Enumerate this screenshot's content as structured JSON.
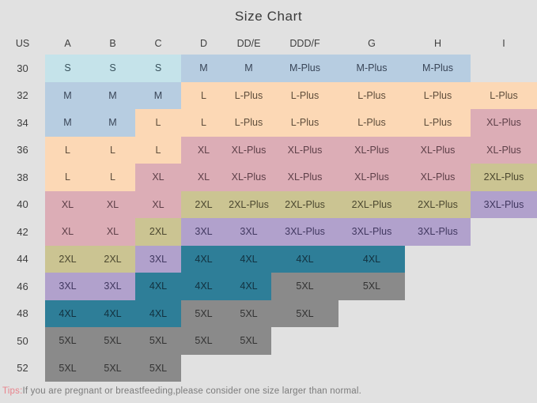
{
  "colors": {
    "background": "#e1e1e1",
    "title_text": "#3a3a3a",
    "header_text": "#3e3e3e",
    "tips_text": "#7b7b7b",
    "tips_label": "#e8838c"
  },
  "tips": {
    "label": "Tips:",
    "text": "If you are pregnant or breastfeeding,please consider one size larger than normal."
  },
  "chart_data": {
    "type": "table",
    "title": "Size Chart",
    "columns": [
      "US",
      "A",
      "B",
      "C",
      "D",
      "DD/E",
      "DDD/F",
      "G",
      "H",
      "I"
    ],
    "palette": {
      "cyan": {
        "bg": "#c5e3ea",
        "fg": "#37505a"
      },
      "blue": {
        "bg": "#b7cde1",
        "fg": "#394557"
      },
      "peach": {
        "bg": "#fcd8b5",
        "fg": "#5e4d3b"
      },
      "pink": {
        "bg": "#dcadb6",
        "fg": "#5e4049"
      },
      "olive": {
        "bg": "#cbc492",
        "fg": "#4c4830"
      },
      "purple": {
        "bg": "#b1a1cc",
        "fg": "#413860"
      },
      "teal": {
        "bg": "#2e7e98",
        "fg": "#12313f"
      },
      "gray": {
        "bg": "#8a8a8a",
        "fg": "#333333"
      }
    },
    "rows": [
      {
        "us": "30",
        "cells": [
          {
            "text": "S",
            "color": "cyan"
          },
          {
            "text": "S",
            "color": "cyan"
          },
          {
            "text": "S",
            "color": "cyan"
          },
          {
            "text": "M",
            "color": "blue"
          },
          {
            "text": "M",
            "color": "blue"
          },
          {
            "text": "M-Plus",
            "color": "blue"
          },
          {
            "text": "M-Plus",
            "color": "blue"
          },
          {
            "text": "M-Plus",
            "color": "blue"
          },
          null
        ]
      },
      {
        "us": "32",
        "cells": [
          {
            "text": "M",
            "color": "blue"
          },
          {
            "text": "M",
            "color": "blue"
          },
          {
            "text": "M",
            "color": "blue"
          },
          {
            "text": "L",
            "color": "peach"
          },
          {
            "text": "L-Plus",
            "color": "peach"
          },
          {
            "text": "L-Plus",
            "color": "peach"
          },
          {
            "text": "L-Plus",
            "color": "peach"
          },
          {
            "text": "L-Plus",
            "color": "peach"
          },
          {
            "text": "L-Plus",
            "color": "peach"
          }
        ]
      },
      {
        "us": "34",
        "cells": [
          {
            "text": "M",
            "color": "blue"
          },
          {
            "text": "M",
            "color": "blue"
          },
          {
            "text": "L",
            "color": "peach"
          },
          {
            "text": "L",
            "color": "peach"
          },
          {
            "text": "L-Plus",
            "color": "peach"
          },
          {
            "text": "L-Plus",
            "color": "peach"
          },
          {
            "text": "L-Plus",
            "color": "peach"
          },
          {
            "text": "L-Plus",
            "color": "peach"
          },
          {
            "text": "XL-Plus",
            "color": "pink"
          }
        ]
      },
      {
        "us": "36",
        "cells": [
          {
            "text": "L",
            "color": "peach"
          },
          {
            "text": "L",
            "color": "peach"
          },
          {
            "text": "L",
            "color": "peach"
          },
          {
            "text": "XL",
            "color": "pink"
          },
          {
            "text": "XL-Plus",
            "color": "pink"
          },
          {
            "text": "XL-Plus",
            "color": "pink"
          },
          {
            "text": "XL-Plus",
            "color": "pink"
          },
          {
            "text": "XL-Plus",
            "color": "pink"
          },
          {
            "text": "XL-Plus",
            "color": "pink"
          }
        ]
      },
      {
        "us": "38",
        "cells": [
          {
            "text": "L",
            "color": "peach"
          },
          {
            "text": "L",
            "color": "peach"
          },
          {
            "text": "XL",
            "color": "pink"
          },
          {
            "text": "XL",
            "color": "pink"
          },
          {
            "text": "XL-Plus",
            "color": "pink"
          },
          {
            "text": "XL-Plus",
            "color": "pink"
          },
          {
            "text": "XL-Plus",
            "color": "pink"
          },
          {
            "text": "XL-Plus",
            "color": "pink"
          },
          {
            "text": "2XL-Plus",
            "color": "olive"
          }
        ]
      },
      {
        "us": "40",
        "cells": [
          {
            "text": "XL",
            "color": "pink"
          },
          {
            "text": "XL",
            "color": "pink"
          },
          {
            "text": "XL",
            "color": "pink"
          },
          {
            "text": "2XL",
            "color": "olive"
          },
          {
            "text": "2XL-Plus",
            "color": "olive"
          },
          {
            "text": "2XL-Plus",
            "color": "olive"
          },
          {
            "text": "2XL-Plus",
            "color": "olive"
          },
          {
            "text": "2XL-Plus",
            "color": "olive"
          },
          {
            "text": "3XL-Plus",
            "color": "purple"
          }
        ]
      },
      {
        "us": "42",
        "cells": [
          {
            "text": "XL",
            "color": "pink"
          },
          {
            "text": "XL",
            "color": "pink"
          },
          {
            "text": "2XL",
            "color": "olive"
          },
          {
            "text": "3XL",
            "color": "purple"
          },
          {
            "text": "3XL",
            "color": "purple"
          },
          {
            "text": "3XL-Plus",
            "color": "purple"
          },
          {
            "text": "3XL-Plus",
            "color": "purple"
          },
          {
            "text": "3XL-Plus",
            "color": "purple"
          },
          null
        ]
      },
      {
        "us": "44",
        "cells": [
          {
            "text": "2XL",
            "color": "olive"
          },
          {
            "text": "2XL",
            "color": "olive"
          },
          {
            "text": "3XL",
            "color": "purple"
          },
          {
            "text": "4XL",
            "color": "teal"
          },
          {
            "text": "4XL",
            "color": "teal"
          },
          {
            "text": "4XL",
            "color": "teal"
          },
          {
            "text": "4XL",
            "color": "teal"
          },
          null,
          null
        ]
      },
      {
        "us": "46",
        "cells": [
          {
            "text": "3XL",
            "color": "purple"
          },
          {
            "text": "3XL",
            "color": "purple"
          },
          {
            "text": "4XL",
            "color": "teal"
          },
          {
            "text": "4XL",
            "color": "teal"
          },
          {
            "text": "4XL",
            "color": "teal"
          },
          {
            "text": "5XL",
            "color": "gray"
          },
          {
            "text": "5XL",
            "color": "gray"
          },
          null,
          null
        ]
      },
      {
        "us": "48",
        "cells": [
          {
            "text": "4XL",
            "color": "teal"
          },
          {
            "text": "4XL",
            "color": "teal"
          },
          {
            "text": "4XL",
            "color": "teal"
          },
          {
            "text": "5XL",
            "color": "gray"
          },
          {
            "text": "5XL",
            "color": "gray"
          },
          {
            "text": "5XL",
            "color": "gray"
          },
          null,
          null,
          null
        ]
      },
      {
        "us": "50",
        "cells": [
          {
            "text": "5XL",
            "color": "gray"
          },
          {
            "text": "5XL",
            "color": "gray"
          },
          {
            "text": "5XL",
            "color": "gray"
          },
          {
            "text": "5XL",
            "color": "gray"
          },
          {
            "text": "5XL",
            "color": "gray"
          },
          null,
          null,
          null,
          null
        ]
      },
      {
        "us": "52",
        "cells": [
          {
            "text": "5XL",
            "color": "gray"
          },
          {
            "text": "5XL",
            "color": "gray"
          },
          {
            "text": "5XL",
            "color": "gray"
          },
          null,
          null,
          null,
          null,
          null,
          null
        ]
      }
    ]
  }
}
